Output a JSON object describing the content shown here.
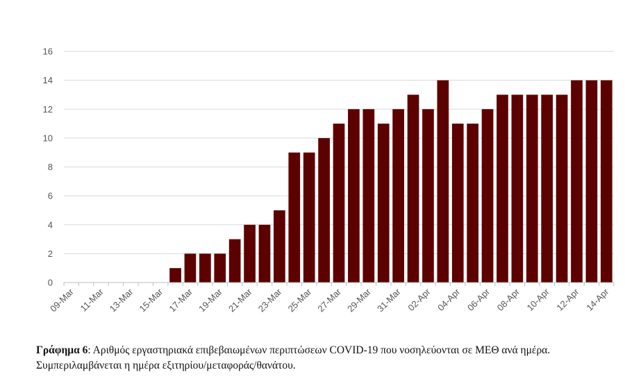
{
  "chart_data": {
    "type": "bar",
    "categories": [
      "09-Mar",
      "10-Mar",
      "11-Mar",
      "12-Mar",
      "13-Mar",
      "14-Mar",
      "15-Mar",
      "16-Mar",
      "17-Mar",
      "18-Mar",
      "19-Mar",
      "20-Mar",
      "21-Mar",
      "22-Mar",
      "23-Mar",
      "24-Mar",
      "25-Mar",
      "26-Mar",
      "27-Mar",
      "28-Mar",
      "29-Mar",
      "30-Mar",
      "31-Mar",
      "01-Apr",
      "02-Apr",
      "03-Apr",
      "04-Apr",
      "05-Apr",
      "06-Apr",
      "07-Apr",
      "08-Apr",
      "09-Apr",
      "10-Apr",
      "11-Apr",
      "12-Apr",
      "13-Apr",
      "14-Apr"
    ],
    "values": [
      0,
      0,
      0,
      0,
      0,
      0,
      0,
      1,
      2,
      2,
      2,
      3,
      4,
      4,
      5,
      9,
      9,
      10,
      11,
      12,
      12,
      11,
      12,
      13,
      12,
      14,
      11,
      11,
      12,
      13,
      13,
      13,
      13,
      13,
      14,
      14,
      14
    ],
    "x_tick_labels": [
      "09-Mar",
      "11-Mar",
      "13-Mar",
      "15-Mar",
      "17-Mar",
      "19-Mar",
      "21-Mar",
      "23-Mar",
      "25-Mar",
      "27-Mar",
      "29-Mar",
      "31-Mar",
      "02-Apr",
      "04-Apr",
      "06-Apr",
      "08-Apr",
      "10-Apr",
      "12-Apr",
      "14-Apr"
    ],
    "y_ticks": [
      0,
      2,
      4,
      6,
      8,
      10,
      12,
      14,
      16
    ],
    "ylim": [
      0,
      16
    ],
    "grid": "horizontal",
    "bar_color": "#5c0000",
    "title": "",
    "xlabel": "",
    "ylabel": ""
  },
  "caption": {
    "label": "Γράφημα 6",
    "text": ": Αριθμός εργαστηριακά επιβεβαιωμένων περιπτώσεων COVID-19 που νοσηλεύονται σε ΜΕΘ ανά ημέρα. Συμπεριλαμβάνεται η ημέρα εξιτηρίου/μεταφοράς/θανάτου."
  }
}
